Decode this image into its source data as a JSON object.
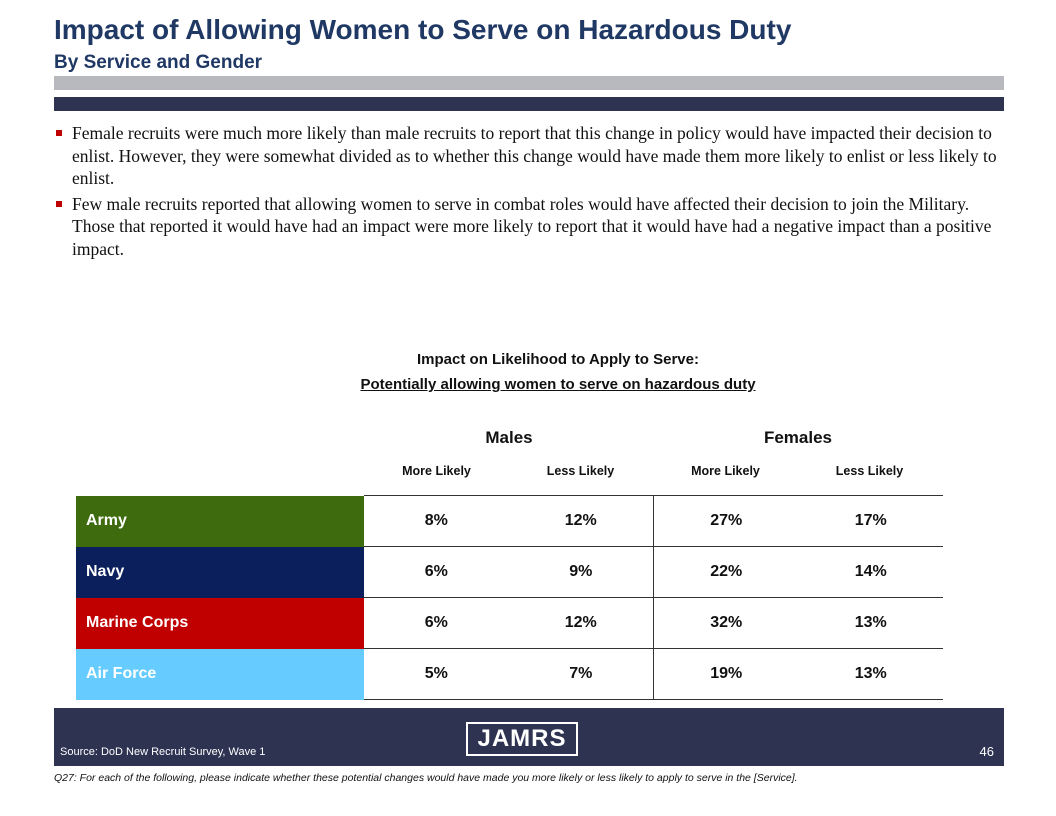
{
  "header": {
    "title": "Impact of Allowing Women to Serve on Hazardous Duty",
    "subtitle": "By Service and Gender"
  },
  "bullets": [
    "Female recruits were much more likely than male recruits to report that this change in policy would have impacted their decision to enlist.  However, they were somewhat divided as to whether this change would have made them more likely to enlist or less likely to enlist.",
    "Few male recruits reported that allowing women to serve in combat roles would have affected their decision to join the Military.  Those that reported it would have had an impact were more likely to report that it would have had a negative impact than a positive impact."
  ],
  "chart": {
    "title_line1": "Impact on Likelihood to Apply to Serve:",
    "title_line2": "Potentially allowing women to serve on hazardous duty",
    "groups": [
      "Males",
      "Females"
    ],
    "columns": [
      "More Likely",
      "Less Likely",
      "More Likely",
      "Less Likely"
    ],
    "rows": [
      {
        "service": "Army",
        "color": "#3d6b0e",
        "values": [
          "8%",
          "12%",
          "27%",
          "17%"
        ]
      },
      {
        "service": "Navy",
        "color": "#0b1f5c",
        "values": [
          "6%",
          "9%",
          "22%",
          "14%"
        ]
      },
      {
        "service": "Marine Corps",
        "color": "#c00000",
        "values": [
          "6%",
          "12%",
          "32%",
          "13%"
        ]
      },
      {
        "service": "Air Force",
        "color": "#66ccff",
        "values": [
          "5%",
          "7%",
          "19%",
          "13%"
        ]
      }
    ]
  },
  "footer": {
    "logo_text": "JAMRS",
    "source": "Source:  DoD New Recruit Survey, Wave 1",
    "page_number": "46",
    "question": "Q27:  For each of the following, please indicate whether these potential changes would have made you more likely or less likely to apply to serve in the [Service]."
  },
  "colors": {
    "title": "#1f3864",
    "band_gray": "#b8b8bf",
    "band_navy": "#2e3352",
    "bullet": "#c00000"
  }
}
